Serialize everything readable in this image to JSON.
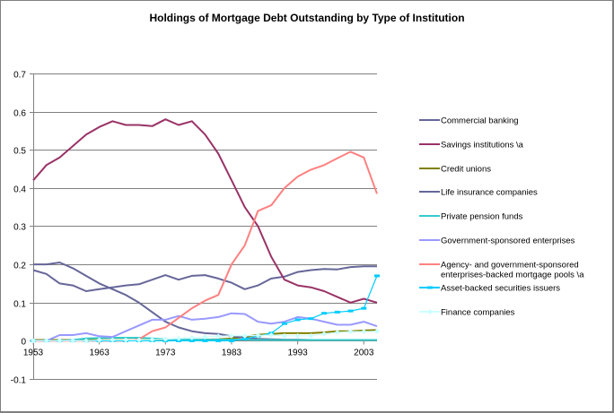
{
  "chart_data": {
    "type": "line",
    "title": "Holdings of Mortgage Debt Outstanding by Type of Institution",
    "xlabel": "",
    "ylabel": "",
    "ylim": [
      -0.1,
      0.7
    ],
    "xlim": [
      1953,
      2005
    ],
    "yticks": [
      "0.7",
      "0.6",
      "0.5",
      "0.4",
      "0.3",
      "0.2",
      "0.1",
      "0",
      "-0.1"
    ],
    "ytick_values": [
      0.7,
      0.6,
      0.5,
      0.4,
      0.3,
      0.2,
      0.1,
      0,
      -0.1
    ],
    "xticks": [
      "1953",
      "1963",
      "1973",
      "1983",
      "1993",
      "2003"
    ],
    "xtick_values": [
      1953,
      1963,
      1973,
      1983,
      1993,
      2003
    ],
    "grid": true,
    "legend_position": "right",
    "x": [
      1953,
      1955,
      1957,
      1959,
      1961,
      1963,
      1965,
      1967,
      1969,
      1971,
      1973,
      1975,
      1977,
      1979,
      1981,
      1983,
      1985,
      1987,
      1989,
      1991,
      1993,
      1995,
      1997,
      1999,
      2001,
      2003,
      2005
    ],
    "series": [
      {
        "name": "Commercial banking",
        "color": "#666699",
        "marker": "none",
        "values": [
          0.185,
          0.175,
          0.15,
          0.145,
          0.13,
          0.135,
          0.14,
          0.145,
          0.148,
          0.16,
          0.172,
          0.16,
          0.17,
          0.172,
          0.163,
          0.152,
          0.135,
          0.145,
          0.163,
          0.168,
          0.18,
          0.185,
          0.188,
          0.187,
          0.193,
          0.195,
          0.195
        ]
      },
      {
        "name": "Savings institutions \\a",
        "color": "#993366",
        "marker": "none",
        "values": [
          0.42,
          0.46,
          0.48,
          0.51,
          0.54,
          0.56,
          0.575,
          0.565,
          0.565,
          0.562,
          0.58,
          0.565,
          0.575,
          0.54,
          0.49,
          0.42,
          0.35,
          0.3,
          0.22,
          0.16,
          0.145,
          0.14,
          0.13,
          0.115,
          0.1,
          0.11,
          0.1
        ]
      },
      {
        "name": "Credit unions",
        "color": "#808000",
        "marker": "none",
        "values": [
          0.002,
          0.002,
          0.002,
          0.002,
          0.002,
          0.002,
          0.002,
          0.002,
          0.002,
          0.002,
          0.002,
          0.002,
          0.002,
          0.003,
          0.004,
          0.006,
          0.01,
          0.016,
          0.018,
          0.02,
          0.02,
          0.02,
          0.022,
          0.025,
          0.025,
          0.027,
          0.028
        ]
      },
      {
        "name": "Life insurance companies",
        "color": "#666699",
        "marker": "none",
        "values": [
          0.2,
          0.2,
          0.205,
          0.19,
          0.17,
          0.15,
          0.135,
          0.12,
          0.1,
          0.075,
          0.05,
          0.035,
          0.025,
          0.02,
          0.018,
          0.012,
          0.008,
          0.005,
          0.004,
          0.003,
          0.003,
          0.002,
          0.002,
          0.002,
          0.002,
          0.002,
          0.002
        ]
      },
      {
        "name": "Private pension funds",
        "color": "#33CCCC",
        "marker": "none",
        "values": [
          0.0,
          0.0,
          0.0,
          0.002,
          0.006,
          0.007,
          0.008,
          0.008,
          0.008,
          0.006,
          0.004,
          0.003,
          0.003,
          0.003,
          0.003,
          0.003,
          0.003,
          0.002,
          0.002,
          0.002,
          0.002,
          0.002,
          0.002,
          0.002,
          0.002,
          0.002,
          0.002
        ]
      },
      {
        "name": "Government-sponsored enterprises",
        "color": "#9999FF",
        "marker": "none",
        "values": [
          0.0,
          0.0,
          0.015,
          0.015,
          0.02,
          0.012,
          0.01,
          0.025,
          0.04,
          0.055,
          0.055,
          0.065,
          0.055,
          0.058,
          0.062,
          0.072,
          0.07,
          0.05,
          0.045,
          0.05,
          0.062,
          0.058,
          0.05,
          0.042,
          0.042,
          0.05,
          0.038
        ]
      },
      {
        "name": "Agency- and government-sponsored enterprises-backed mortgage pools \\a",
        "color": "#FF8080",
        "marker": "none",
        "values": [
          0.0,
          0.0,
          0.0,
          0.0,
          0.0,
          0.0,
          0.0,
          0.0,
          0.004,
          0.025,
          0.035,
          0.06,
          0.085,
          0.105,
          0.12,
          0.2,
          0.25,
          0.34,
          0.355,
          0.4,
          0.43,
          0.448,
          0.46,
          0.478,
          0.495,
          0.48,
          0.385
        ]
      },
      {
        "name": "Asset-backed securities issuers",
        "color": "#00CCFF",
        "marker": "dash",
        "values": [
          0.0,
          0.0,
          0.0,
          0.0,
          0.0,
          0.0,
          0.0,
          0.0,
          0.0,
          0.0,
          0.0,
          0.0,
          0.0,
          0.0,
          0.0,
          0.0,
          0.005,
          0.012,
          0.02,
          0.045,
          0.055,
          0.058,
          0.072,
          0.075,
          0.078,
          0.085,
          0.17
        ]
      },
      {
        "name": "Finance companies",
        "color": "#CCFFFF",
        "marker": "diamond",
        "values": [
          0.0,
          0.0,
          0.0,
          0.0,
          0.0,
          0.002,
          0.002,
          0.002,
          0.002,
          0.003,
          0.004,
          0.006,
          0.008,
          0.01,
          0.012,
          0.013,
          0.013,
          0.014,
          0.015,
          0.013,
          0.013,
          0.013,
          0.018,
          0.022,
          0.024,
          0.024,
          0.025
        ]
      }
    ]
  }
}
